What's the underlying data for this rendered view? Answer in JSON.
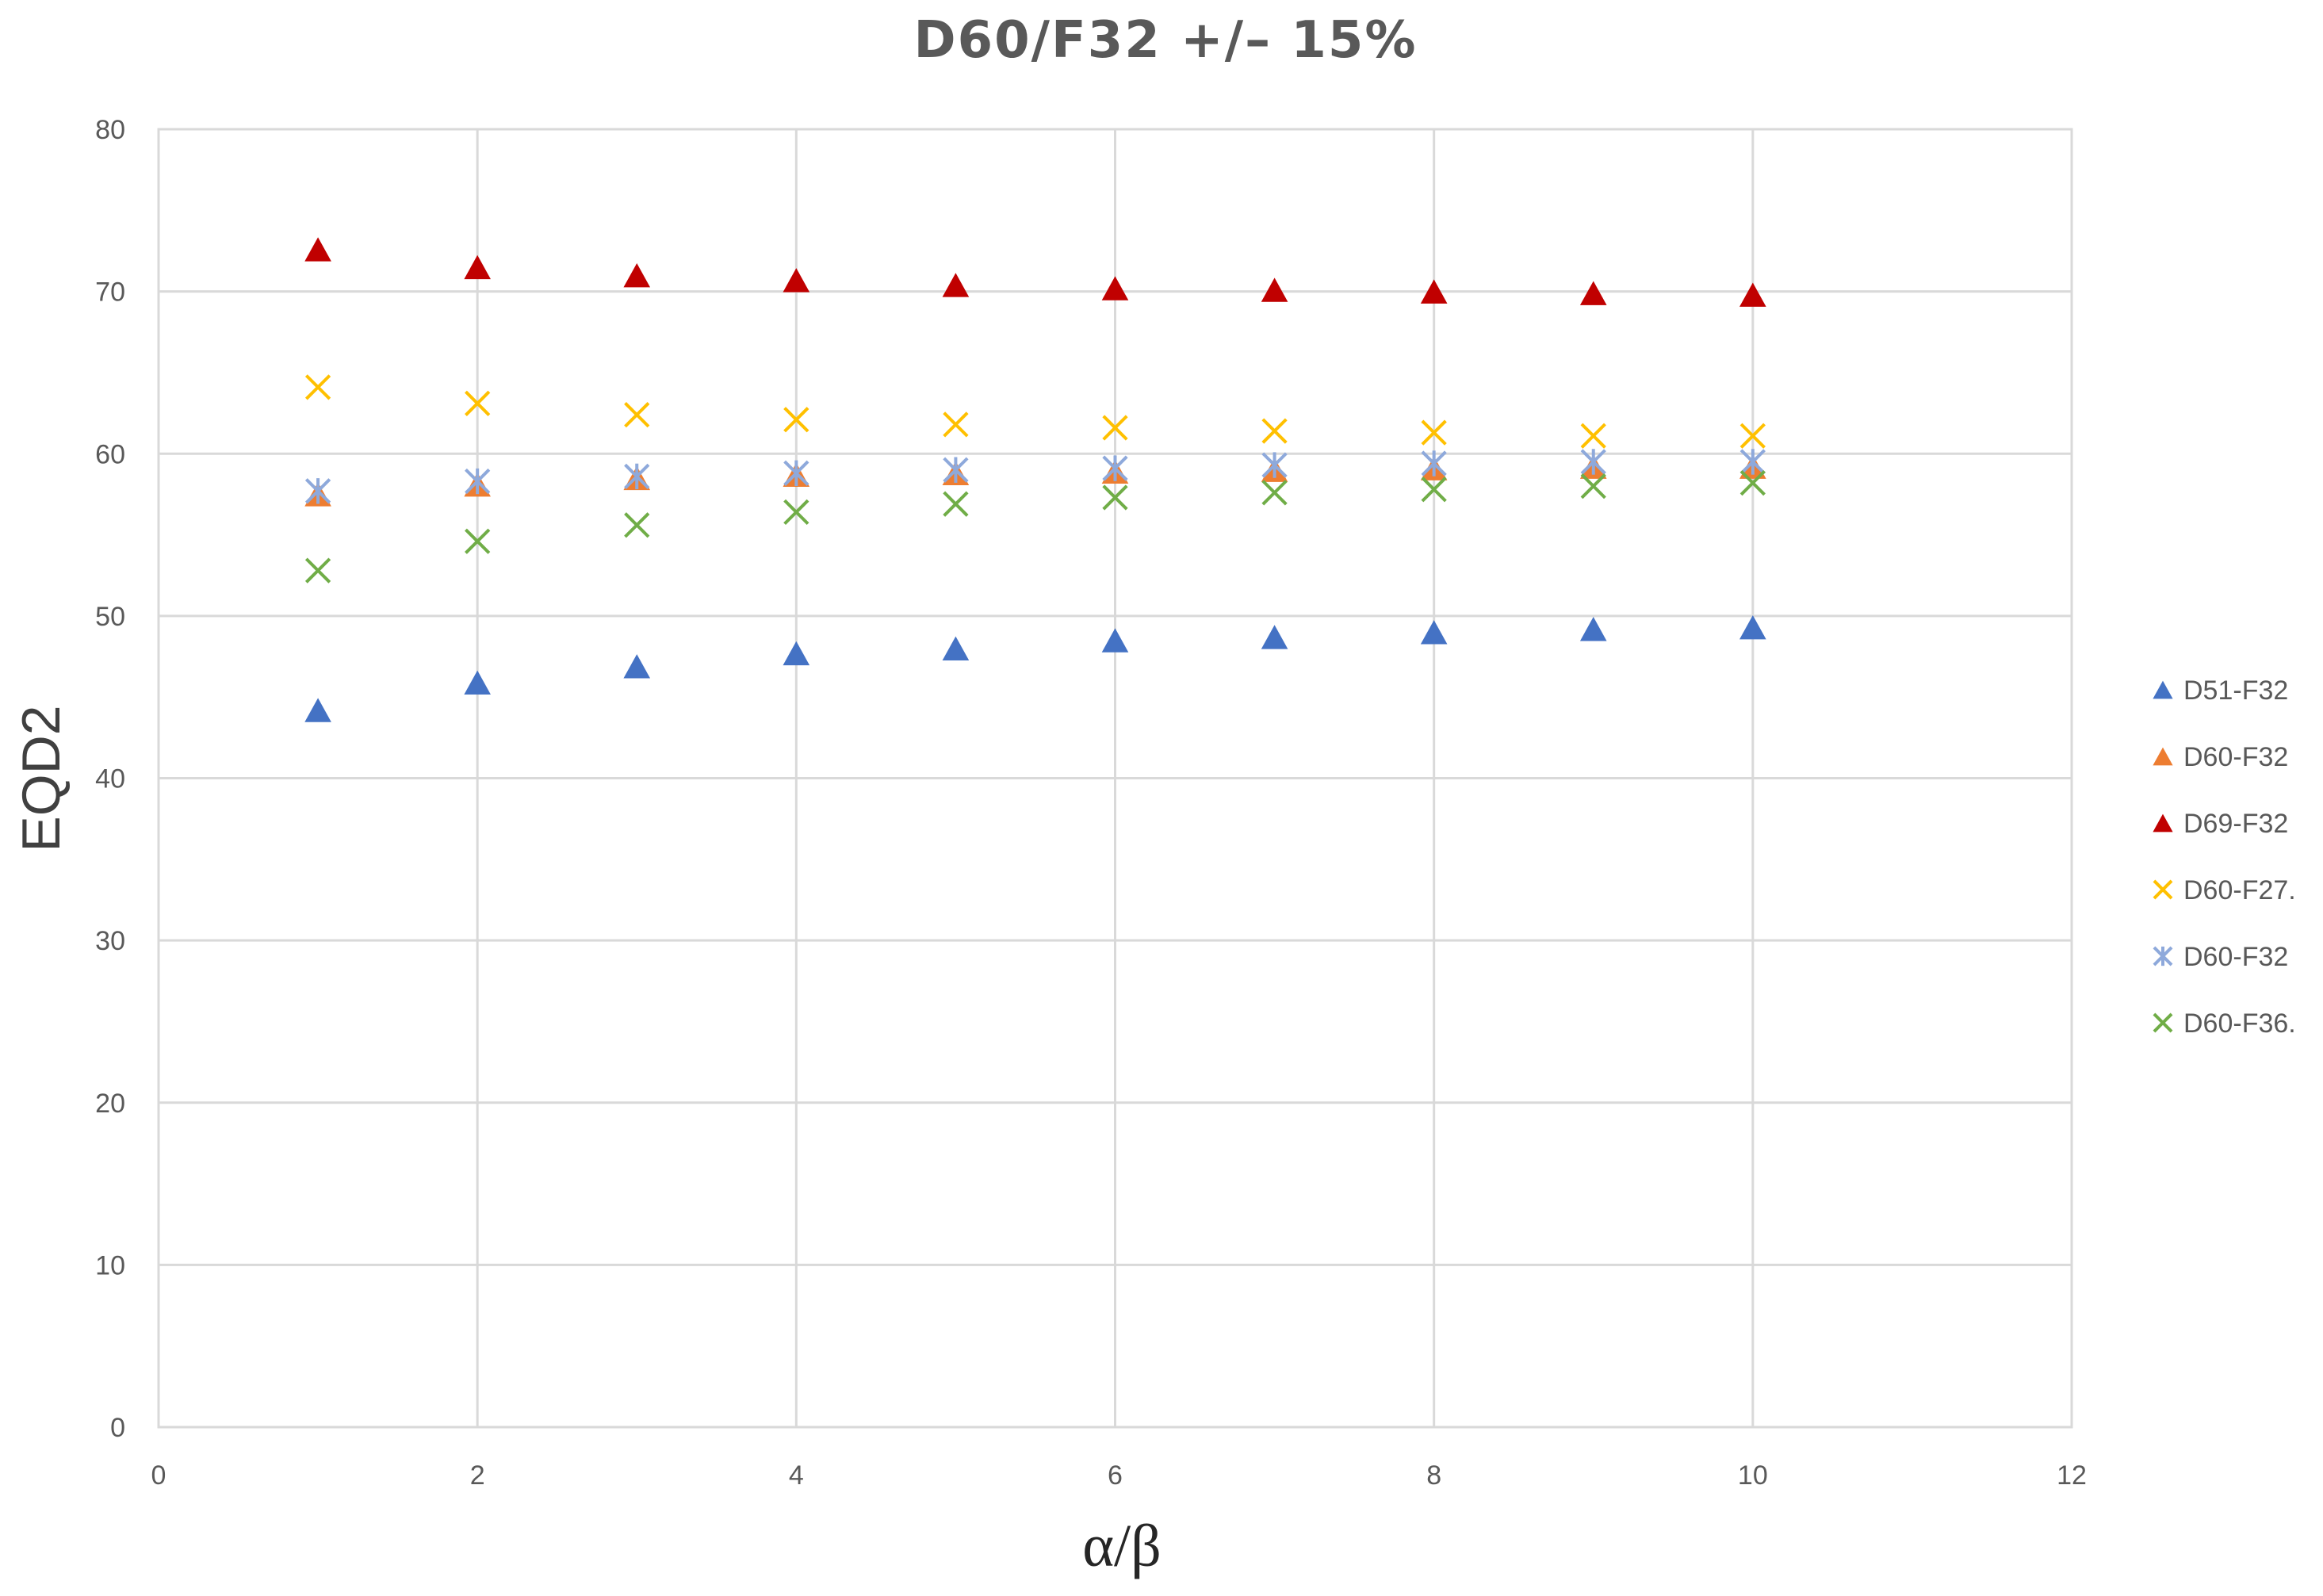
{
  "chart_data": {
    "type": "scatter",
    "title": "D60/F32 +/– 15%",
    "xlabel": "α/β",
    "ylabel": "EQD2",
    "xlim": [
      0,
      12
    ],
    "ylim": [
      0,
      80
    ],
    "x_ticks": [
      "0",
      "2",
      "4",
      "6",
      "8",
      "10",
      "12"
    ],
    "y_ticks": [
      "0",
      "10",
      "20",
      "30",
      "40",
      "50",
      "60",
      "70",
      "80"
    ],
    "grid": true,
    "legend_position": "right",
    "x": [
      1,
      2,
      3,
      4,
      5,
      6,
      7,
      8,
      9,
      10
    ],
    "series": [
      {
        "name": "D51-F32",
        "marker": "triangle",
        "color": "#4472C4",
        "values": [
          44.2,
          45.9,
          46.9,
          47.7,
          48.0,
          48.5,
          48.7,
          49.0,
          49.2,
          49.3
        ]
      },
      {
        "name": "D60-F32",
        "marker": "triangle",
        "color": "#ED7D31",
        "values": [
          57.5,
          58.1,
          58.5,
          58.7,
          58.8,
          58.9,
          59.0,
          59.1,
          59.2,
          59.2
        ]
      },
      {
        "name": "D69-F32",
        "marker": "triangle",
        "color": "#C00000",
        "values": [
          72.6,
          71.5,
          71.0,
          70.7,
          70.4,
          70.2,
          70.1,
          70.0,
          69.9,
          69.8
        ]
      },
      {
        "name": "D60-F27.",
        "marker": "x",
        "color": "#FFC000",
        "values": [
          64.1,
          63.1,
          62.4,
          62.1,
          61.8,
          61.6,
          61.4,
          61.3,
          61.1,
          61.1
        ]
      },
      {
        "name": "D60-F32",
        "marker": "star",
        "color": "#8EA9DB",
        "values": [
          57.7,
          58.3,
          58.6,
          58.8,
          59.0,
          59.1,
          59.3,
          59.4,
          59.5,
          59.5
        ]
      },
      {
        "name": "D60-F36.",
        "marker": "x",
        "color": "#70AD47",
        "values": [
          52.8,
          54.6,
          55.6,
          56.4,
          56.9,
          57.3,
          57.6,
          57.8,
          58.0,
          58.2
        ]
      }
    ]
  }
}
